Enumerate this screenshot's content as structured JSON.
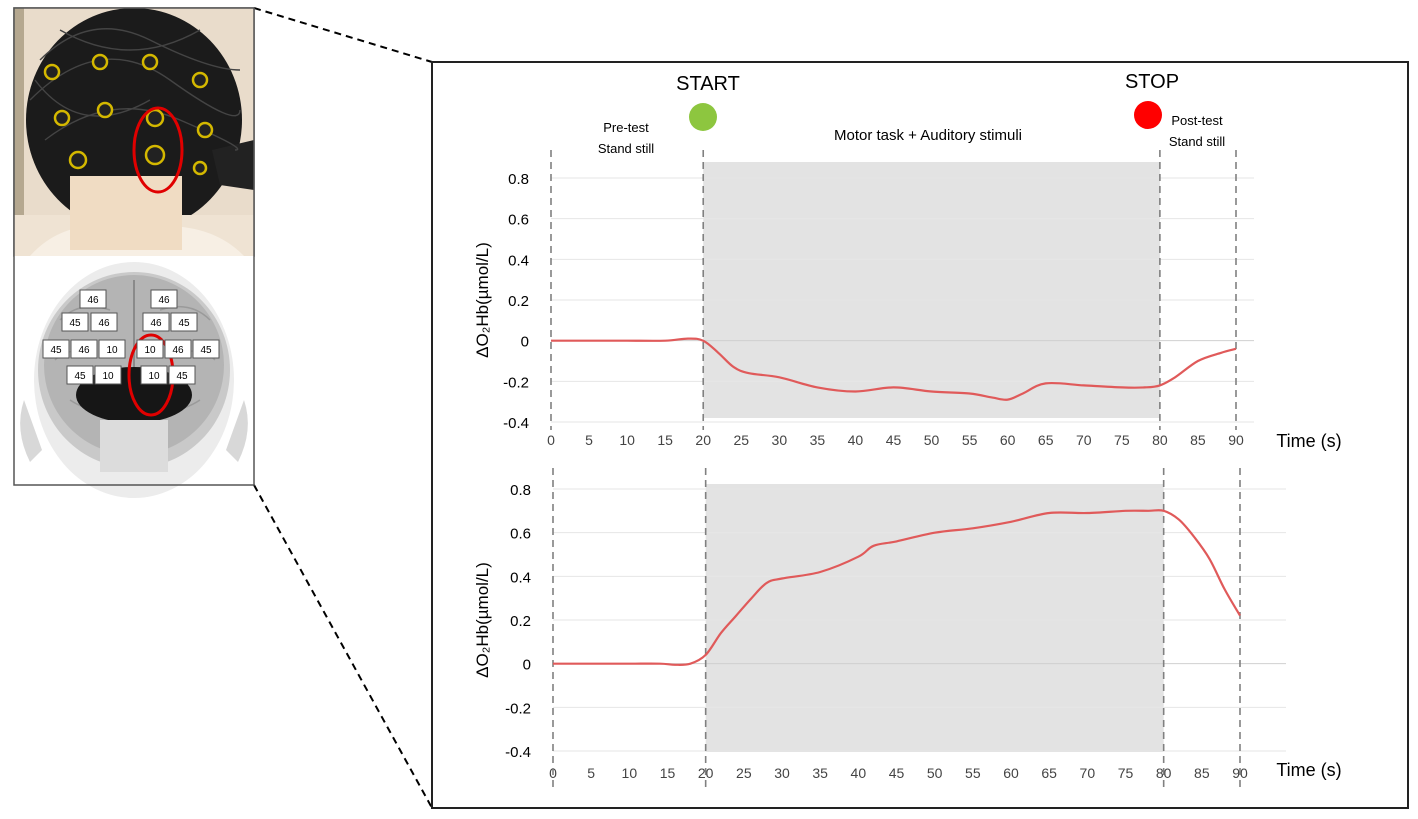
{
  "colors": {
    "shade": "#e3e3e3",
    "line": "#e05a5a",
    "start_dot": "#8dc63f",
    "stop_dot": "#ff0000",
    "circle": "#e00000",
    "grid": "#e6e6e6",
    "dash": "#808080",
    "frame": "#222222"
  },
  "left_panel": {
    "photo": {
      "description_icon": "head-photo-icon"
    },
    "brain": {
      "icon": "brain-icon",
      "left_labels": [
        [
          "46"
        ],
        [
          "45",
          "46"
        ],
        [
          "45",
          "46",
          "10"
        ],
        [
          "45",
          "10"
        ]
      ],
      "right_labels": [
        [
          "46"
        ],
        [
          "46",
          "45"
        ],
        [
          "10",
          "46",
          "45"
        ],
        [
          "10",
          "45"
        ]
      ]
    }
  },
  "header": {
    "start": "START",
    "stop": "STOP",
    "pre_test": [
      "Pre-test",
      "Stand still"
    ],
    "task": "Motor task + Auditory stimuli",
    "post_test": [
      "Post-test",
      "Stand still"
    ]
  },
  "chart_data": [
    {
      "type": "line",
      "ylabel": "ΔO₂Hb(µmol/L)",
      "xlabel": "Time (s)",
      "xlim": [
        0,
        90
      ],
      "ylim": [
        -0.4,
        0.8
      ],
      "x_ticks": [
        0,
        5,
        10,
        15,
        20,
        25,
        30,
        35,
        40,
        45,
        50,
        55,
        60,
        65,
        70,
        75,
        80,
        85,
        90
      ],
      "y_ticks": [
        "0.8",
        "0.6",
        "0.4",
        "0.2",
        "0",
        "-0.2",
        "-0.4"
      ],
      "y_tick_values": [
        0.8,
        0.6,
        0.4,
        0.2,
        0,
        -0.2,
        -0.4
      ],
      "shaded_range": [
        20,
        80
      ],
      "markers": [
        0,
        20,
        80,
        90
      ],
      "series": [
        {
          "x": [
            0,
            5,
            10,
            15,
            18,
            20,
            22,
            24,
            26,
            30,
            35,
            40,
            45,
            50,
            55,
            58,
            60,
            62,
            65,
            70,
            75,
            78,
            80,
            82,
            85,
            88,
            90
          ],
          "values": [
            0,
            0,
            0,
            0,
            0.01,
            0,
            -0.06,
            -0.13,
            -0.16,
            -0.18,
            -0.23,
            -0.25,
            -0.23,
            -0.25,
            -0.26,
            -0.28,
            -0.29,
            -0.26,
            -0.21,
            -0.22,
            -0.23,
            -0.23,
            -0.22,
            -0.18,
            -0.1,
            -0.06,
            -0.04
          ]
        }
      ]
    },
    {
      "type": "line",
      "ylabel": "ΔO₂Hb(µmol/L)",
      "xlabel": "Time (s)",
      "xlim": [
        0,
        90
      ],
      "ylim": [
        -0.4,
        0.8
      ],
      "x_ticks": [
        0,
        5,
        10,
        15,
        20,
        25,
        30,
        35,
        40,
        45,
        50,
        55,
        60,
        65,
        70,
        75,
        80,
        85,
        90
      ],
      "y_ticks": [
        "0.8",
        "0.6",
        "0.4",
        "0.2",
        "0",
        "-0.2",
        "-0.4"
      ],
      "y_tick_values": [
        0.8,
        0.6,
        0.4,
        0.2,
        0,
        -0.2,
        -0.4
      ],
      "shaded_range": [
        20,
        80
      ],
      "markers": [
        0,
        20,
        80,
        90
      ],
      "series": [
        {
          "x": [
            0,
            5,
            10,
            14,
            16,
            18,
            20,
            22,
            24,
            26,
            28,
            30,
            35,
            40,
            42,
            45,
            50,
            55,
            60,
            65,
            70,
            75,
            78,
            80,
            82,
            84,
            86,
            88,
            90
          ],
          "values": [
            0,
            0,
            0,
            0,
            -0.005,
            0,
            0.04,
            0.14,
            0.22,
            0.3,
            0.37,
            0.39,
            0.42,
            0.49,
            0.54,
            0.56,
            0.6,
            0.62,
            0.65,
            0.69,
            0.69,
            0.7,
            0.7,
            0.7,
            0.66,
            0.58,
            0.48,
            0.34,
            0.22
          ]
        }
      ]
    }
  ]
}
